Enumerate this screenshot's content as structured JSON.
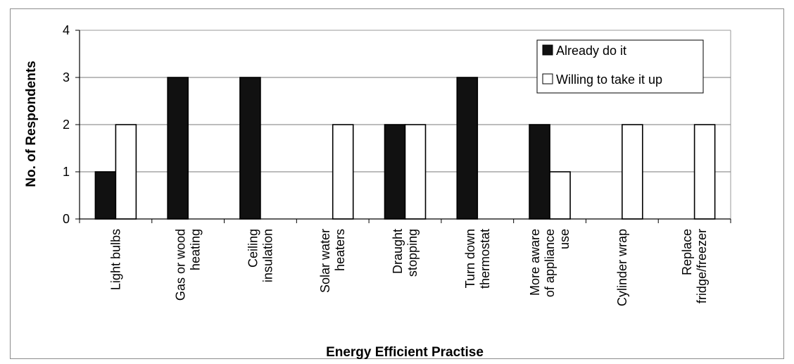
{
  "chart_data": {
    "type": "bar",
    "title": "",
    "xlabel": "Energy Efficient Practise",
    "ylabel": "No. of Respondents",
    "ylim": [
      0,
      4
    ],
    "yticks": [
      0,
      1,
      2,
      3,
      4
    ],
    "grid": true,
    "legend_position": "top-right",
    "categories": [
      [
        "Light bulbs"
      ],
      [
        "Gas or wood",
        "heating"
      ],
      [
        "Ceiling",
        "insulation"
      ],
      [
        "Solar water",
        "heaters"
      ],
      [
        "Draught",
        "stopping"
      ],
      [
        "Turn down",
        "thermostat"
      ],
      [
        "More aware",
        "of appliance",
        "use"
      ],
      [
        "Cylinder wrap"
      ],
      [
        "Replace",
        "fridge/freezer"
      ]
    ],
    "series": [
      {
        "name": "Already do it",
        "color": "#111111",
        "values": [
          1,
          3,
          3,
          0,
          2,
          3,
          2,
          0,
          0
        ]
      },
      {
        "name": "Willing to take it up",
        "color": "#ffffff",
        "values": [
          2,
          0,
          0,
          2,
          2,
          0,
          1,
          2,
          2
        ]
      }
    ]
  }
}
